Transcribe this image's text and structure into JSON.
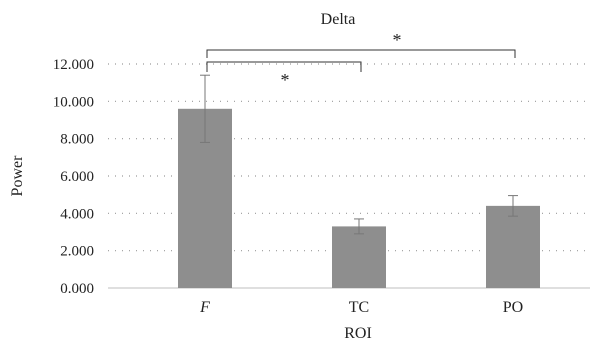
{
  "chart_data": {
    "type": "bar",
    "title": "Delta",
    "xlabel": "ROI",
    "ylabel": "Power",
    "categories": [
      "F",
      "TC",
      "PO"
    ],
    "category_italic": [
      true,
      false,
      false
    ],
    "values": [
      9.6,
      3.3,
      4.4
    ],
    "errors": [
      1.8,
      0.4,
      0.55
    ],
    "ylim": [
      0,
      12
    ],
    "yticks": [
      0,
      2,
      4,
      6,
      8,
      10,
      12
    ],
    "ytick_labels": [
      "0.000",
      "2.000",
      "4.000",
      "6.000",
      "8.000",
      "10.000",
      "12.000"
    ],
    "grid": "horizontal-dotted",
    "bar_color": "#8e8e8e",
    "error_color": "#777777",
    "significance": [
      {
        "from": "F",
        "to": "PO",
        "label": "*"
      },
      {
        "from": "F",
        "to": "TC",
        "label": "*"
      }
    ]
  }
}
